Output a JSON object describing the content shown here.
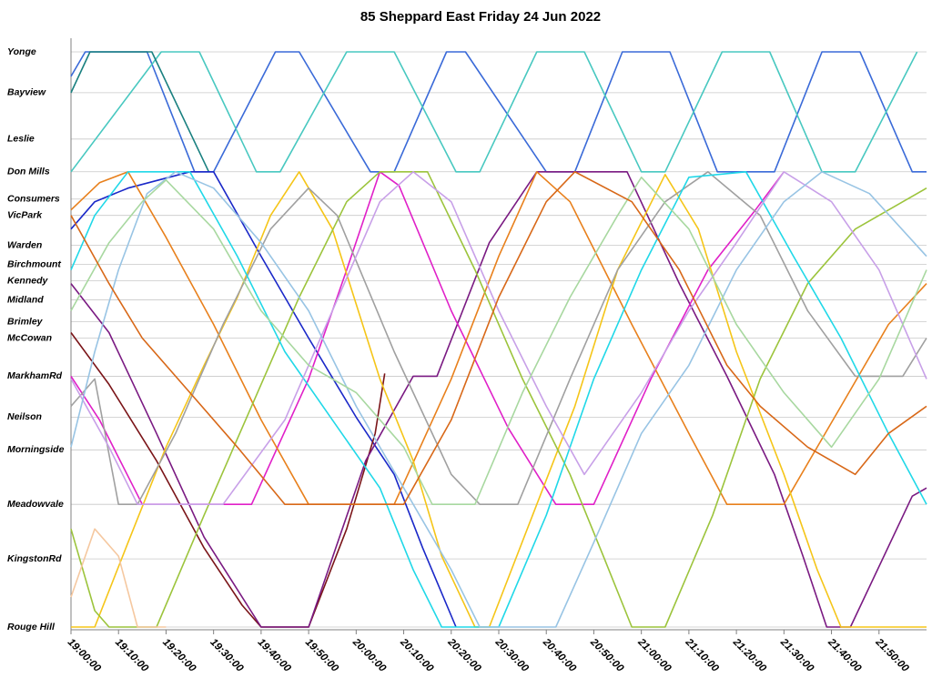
{
  "chart_data": {
    "type": "line",
    "title": "85 Sheppard East Friday 24 Jun 2022",
    "invert_y": true,
    "grid": true,
    "xlim": [
      "19:00:00",
      "22:00:00"
    ],
    "xticks": [
      "19:00:00",
      "19:10:00",
      "19:20:00",
      "19:30:00",
      "19:40:00",
      "19:50:00",
      "20:00:00",
      "20:10:00",
      "20:20:00",
      "20:30:00",
      "20:40:00",
      "20:50:00",
      "21:00:00",
      "21:10:00",
      "21:20:00",
      "21:30:00",
      "21:40:00",
      "21:50:00"
    ],
    "ylim": [
      -0.5,
      21.2
    ],
    "yticks": [
      {
        "value": 0,
        "label": "Yonge"
      },
      {
        "value": 1.5,
        "label": "Bayview"
      },
      {
        "value": 3.2,
        "label": "Leslie"
      },
      {
        "value": 4.4,
        "label": "Don Mills"
      },
      {
        "value": 5.4,
        "label": "Consumers"
      },
      {
        "value": 6.0,
        "label": "VicPark"
      },
      {
        "value": 7.1,
        "label": "Warden"
      },
      {
        "value": 7.8,
        "label": "Birchmount"
      },
      {
        "value": 8.4,
        "label": "Kennedy"
      },
      {
        "value": 9.1,
        "label": "Midland"
      },
      {
        "value": 9.9,
        "label": "Brimley"
      },
      {
        "value": 10.5,
        "label": "McCowan"
      },
      {
        "value": 11.9,
        "label": "MarkhamRd"
      },
      {
        "value": 13.4,
        "label": "Neilson"
      },
      {
        "value": 14.6,
        "label": "Morningside"
      },
      {
        "value": 16.6,
        "label": "Meadowvale"
      },
      {
        "value": 18.6,
        "label": "KingstonRd"
      },
      {
        "value": 21.1,
        "label": "Rouge Hill"
      }
    ],
    "series": [
      {
        "color": "#3a6ad8",
        "x": [
          "19:00:00",
          "19:03:00",
          "19:16:00",
          "19:26:00",
          "19:30:00",
          "19:43:00",
          "19:48:00",
          "20:03:00",
          "20:08:00",
          "20:19:00",
          "20:23:00",
          "20:40:00",
          "20:46:00",
          "20:56:00",
          "21:06:00",
          "21:16:00",
          "21:28:00",
          "21:38:00",
          "21:46:00",
          "21:57:00",
          "22:00:00"
        ],
        "values": [
          0.9,
          0,
          0,
          4.4,
          4.4,
          0,
          0,
          4.4,
          4.4,
          0,
          0,
          4.4,
          4.4,
          0,
          0,
          4.4,
          4.4,
          0,
          0,
          4.4,
          4.4
        ]
      },
      {
        "color": "#48c8c0",
        "x": [
          "19:00:00",
          "19:19:00",
          "19:27:00",
          "19:39:00",
          "19:44:00",
          "19:58:00",
          "20:08:00",
          "20:21:00",
          "20:26:00",
          "20:38:00",
          "20:48:00",
          "21:00:00",
          "21:05:00",
          "21:17:00",
          "21:27:00",
          "21:38:00",
          "21:45:00",
          "21:58:00"
        ],
        "values": [
          4.4,
          0,
          0,
          4.4,
          4.4,
          0,
          0,
          4.4,
          4.4,
          0,
          0,
          4.4,
          4.4,
          0,
          0,
          4.4,
          4.4,
          0
        ]
      },
      {
        "color": "#1a8080",
        "x": [
          "19:00:00",
          "19:04:00",
          "19:17:00",
          "19:29:00"
        ],
        "values": [
          1.5,
          0,
          0,
          4.4
        ]
      },
      {
        "color": "#1a28c8",
        "x": [
          "19:00:00",
          "19:05:00",
          "19:12:00",
          "19:25:00",
          "19:30:00",
          "19:40:00",
          "19:50:00",
          "20:00:00",
          "20:08:00",
          "20:14:00",
          "20:21:00"
        ],
        "values": [
          6.5,
          5.5,
          5.0,
          4.4,
          4.4,
          7.5,
          10.5,
          13.4,
          15.5,
          18.2,
          21.1
        ]
      },
      {
        "color": "#7a1418",
        "x": [
          "19:00:00",
          "19:08:00",
          "19:18:00",
          "19:28:00",
          "19:36:00",
          "19:40:00",
          "19:50:00",
          "19:58:00",
          "20:04:00",
          "20:06:00"
        ],
        "values": [
          10.3,
          12.2,
          15.0,
          18.2,
          20.3,
          21.1,
          21.1,
          17.5,
          14.0,
          11.8
        ]
      },
      {
        "color": "#7a1a82",
        "x": [
          "19:00:00",
          "19:08:00",
          "19:18:00",
          "19:28:00",
          "19:40:00",
          "19:50:00",
          "20:02:00",
          "20:12:00",
          "20:17:00",
          "20:28:00",
          "20:38:00",
          "20:57:00",
          "21:08:00",
          "21:18:00",
          "21:28:00",
          "21:34:00",
          "21:39:00",
          "21:44:00",
          "21:57:00",
          "22:00:00"
        ],
        "values": [
          8.5,
          10.3,
          14.0,
          17.8,
          21.1,
          21.1,
          15.0,
          11.9,
          11.9,
          7.0,
          4.4,
          4.4,
          8.5,
          11.9,
          15.5,
          18.5,
          21.1,
          21.1,
          16.3,
          16.0
        ]
      },
      {
        "color": "#e020c8",
        "x": [
          "19:00:00",
          "19:06:00",
          "19:15:00",
          "19:38:00",
          "19:50:00",
          "19:58:00",
          "20:05:00",
          "20:09:00",
          "20:20:00",
          "20:32:00",
          "20:42:00",
          "20:50:00",
          "21:02:00",
          "21:14:00",
          "21:24:00",
          "21:30:00"
        ],
        "values": [
          11.9,
          13.5,
          16.6,
          16.6,
          12.0,
          8.0,
          4.4,
          4.9,
          9.5,
          13.8,
          16.6,
          16.6,
          12.0,
          8.0,
          5.8,
          4.4
        ]
      },
      {
        "color": "#e8801c",
        "x": [
          "19:00:00",
          "19:06:00",
          "19:12:00",
          "19:20:00",
          "19:30:00",
          "19:40:00",
          "19:50:00",
          "20:08:00",
          "20:20:00",
          "20:30:00",
          "20:38:00",
          "20:45:00",
          "20:58:00",
          "21:10:00",
          "21:18:00",
          "21:30:00",
          "21:42:00",
          "21:52:00",
          "22:00:00"
        ],
        "values": [
          5.8,
          4.8,
          4.4,
          6.8,
          10.0,
          13.5,
          16.6,
          16.6,
          12.0,
          7.5,
          4.4,
          5.5,
          10.0,
          14.0,
          16.6,
          16.6,
          13.0,
          10.0,
          8.5
        ]
      },
      {
        "color": "#f5c518",
        "x": [
          "19:00:00",
          "19:05:00",
          "19:12:00",
          "19:20:00",
          "19:28:00",
          "19:35:00",
          "19:42:00",
          "19:48:00",
          "19:55:00",
          "20:05:00",
          "20:12:00",
          "20:18:00",
          "20:25:00",
          "20:28:00",
          "20:38:00",
          "20:46:00",
          "20:55:00",
          "21:05:00",
          "21:12:00",
          "21:20:00",
          "21:30:00",
          "21:37:00",
          "21:42:00",
          "22:00:00"
        ],
        "values": [
          21.1,
          21.1,
          18.0,
          14.5,
          11.5,
          9.0,
          6.0,
          4.4,
          6.5,
          12.0,
          15.0,
          18.5,
          21.1,
          21.1,
          16.6,
          13.0,
          8.0,
          4.5,
          6.5,
          11.0,
          15.5,
          19.0,
          21.1,
          21.1
        ]
      },
      {
        "color": "#9cc43c",
        "x": [
          "19:00:00",
          "19:05:00",
          "19:08:00",
          "19:18:00",
          "19:28:00",
          "19:38:00",
          "19:48:00",
          "19:58:00",
          "20:05:00",
          "20:15:00",
          "20:25:00",
          "20:35:00",
          "20:45:00",
          "20:52:00",
          "20:58:00",
          "21:05:00",
          "21:15:00",
          "21:25:00",
          "21:35:00",
          "21:45:00",
          "21:55:00",
          "22:00:00"
        ],
        "values": [
          17.5,
          20.5,
          21.1,
          21.1,
          17.0,
          13.0,
          9.0,
          5.5,
          4.4,
          4.4,
          8.0,
          12.0,
          15.5,
          18.5,
          21.1,
          21.1,
          17.0,
          12.0,
          8.5,
          6.5,
          5.5,
          5.0
        ]
      },
      {
        "color": "#a0a0a0",
        "x": [
          "19:00:00",
          "19:05:00",
          "19:10:00",
          "19:14:00",
          "19:22:00",
          "19:32:00",
          "19:42:00",
          "19:50:00",
          "19:56:00",
          "20:08:00",
          "20:20:00",
          "20:26:00",
          "20:34:00",
          "20:45:00",
          "20:55:00",
          "21:05:00",
          "21:14:00",
          "21:25:00",
          "21:35:00",
          "21:45:00",
          "21:55:00",
          "22:00:00"
        ],
        "values": [
          13.0,
          12.0,
          16.6,
          16.6,
          14.0,
          10.0,
          6.5,
          5.0,
          6.0,
          11.0,
          15.5,
          16.6,
          16.6,
          12.0,
          8.0,
          5.5,
          4.4,
          6.0,
          9.5,
          11.9,
          11.9,
          10.5
        ]
      },
      {
        "color": "#20d8e8",
        "x": [
          "19:00:00",
          "19:05:00",
          "19:12:00",
          "19:25:00",
          "19:35:00",
          "19:45:00",
          "19:55:00",
          "20:05:00",
          "20:12:00",
          "20:18:00",
          "20:30:00",
          "20:40:00",
          "20:50:00",
          "21:00:00",
          "21:10:00",
          "21:22:00",
          "21:32:00",
          "21:42:00",
          "21:52:00",
          "22:00:00"
        ],
        "values": [
          8.0,
          6.0,
          4.4,
          4.4,
          7.5,
          11.0,
          13.5,
          16.0,
          19.0,
          21.1,
          21.1,
          17.0,
          12.0,
          8.0,
          4.6,
          4.4,
          7.5,
          10.5,
          14.0,
          16.6
        ]
      },
      {
        "color": "#c8a0e8",
        "x": [
          "19:00:00",
          "19:08:00",
          "19:14:00",
          "19:32:00",
          "19:45:00",
          "19:55:00",
          "20:05:00",
          "20:12:00",
          "20:20:00",
          "20:30:00",
          "20:40:00",
          "20:48:00",
          "21:00:00",
          "21:10:00",
          "21:20:00",
          "21:30:00",
          "21:40:00",
          "21:50:00",
          "22:00:00"
        ],
        "values": [
          12.0,
          14.5,
          16.6,
          16.6,
          13.5,
          9.5,
          5.5,
          4.4,
          5.5,
          9.5,
          13.0,
          15.5,
          12.5,
          9.5,
          7.0,
          4.4,
          5.5,
          8.0,
          12.0
        ]
      },
      {
        "color": "#98c4e4",
        "x": [
          "19:00:00",
          "19:05:00",
          "19:10:00",
          "19:16:00",
          "19:22:00",
          "19:30:00",
          "19:40:00",
          "19:50:00",
          "20:00:00",
          "20:10:00",
          "20:20:00",
          "20:26:00",
          "20:42:00",
          "20:50:00",
          "21:00:00",
          "21:10:00",
          "21:20:00",
          "21:30:00",
          "21:38:00",
          "21:48:00",
          "22:00:00"
        ],
        "values": [
          14.5,
          11.0,
          8.0,
          5.2,
          4.4,
          5.0,
          7.0,
          9.5,
          13.0,
          16.0,
          19.0,
          21.1,
          21.1,
          18.0,
          14.0,
          11.5,
          8.0,
          5.5,
          4.4,
          5.2,
          7.5
        ]
      },
      {
        "color": "#a8d8a0",
        "x": [
          "19:00:00",
          "19:08:00",
          "19:15:00",
          "19:20:00",
          "19:30:00",
          "19:40:00",
          "19:50:00",
          "20:00:00",
          "20:10:00",
          "20:16:00",
          "20:25:00",
          "20:35:00",
          "20:45:00",
          "20:55:00",
          "21:00:00",
          "21:10:00",
          "21:20:00",
          "21:30:00",
          "21:40:00",
          "21:50:00",
          "22:00:00"
        ],
        "values": [
          9.5,
          7.0,
          5.5,
          4.7,
          6.5,
          9.5,
          11.5,
          12.5,
          14.5,
          16.6,
          16.6,
          12.5,
          9.0,
          6.0,
          4.6,
          6.5,
          10.0,
          12.5,
          14.5,
          12.0,
          8.0
        ]
      },
      {
        "color": "#f5c8a0",
        "x": [
          "19:00:00",
          "19:05:00",
          "19:10:00",
          "19:14:00",
          "19:20:00"
        ],
        "values": [
          20.0,
          17.5,
          18.5,
          21.1,
          21.1
        ]
      },
      {
        "color": "#d86818",
        "x": [
          "19:00:00",
          "19:08:00",
          "19:15:00",
          "19:25:00",
          "19:35:00",
          "19:45:00",
          "20:10:00",
          "20:20:00",
          "20:30:00",
          "20:40:00",
          "20:46:00",
          "20:58:00",
          "21:08:00",
          "21:18:00",
          "21:25:00",
          "21:35:00",
          "21:45:00",
          "21:52:00",
          "22:00:00"
        ],
        "values": [
          6.0,
          8.5,
          10.5,
          12.5,
          14.5,
          16.6,
          16.6,
          13.5,
          9.0,
          5.5,
          4.4,
          5.5,
          8.0,
          11.5,
          13.0,
          14.5,
          15.5,
          14.0,
          13.0
        ]
      }
    ]
  }
}
